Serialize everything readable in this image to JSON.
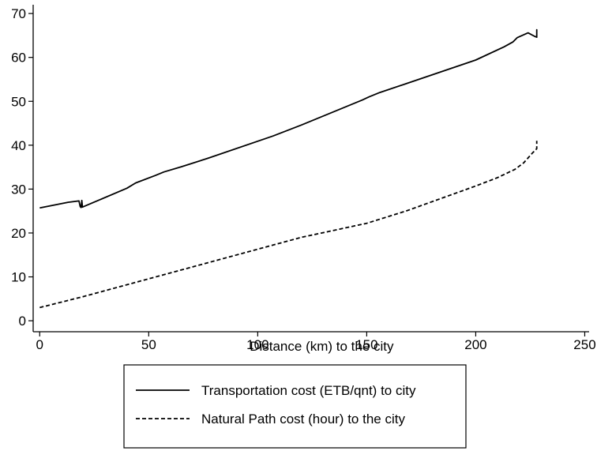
{
  "chart_data": {
    "type": "line",
    "title": "",
    "xlabel": "Distance (km) to the city",
    "ylabel": "",
    "xlim": [
      -3,
      252
    ],
    "ylim": [
      -2.5,
      72
    ],
    "x_ticks": [
      0,
      50,
      100,
      150,
      200,
      250
    ],
    "x_tick_labels": [
      "0",
      "50",
      "100",
      "150",
      "200",
      "250"
    ],
    "y_ticks": [
      0,
      10,
      20,
      30,
      40,
      50,
      60,
      70
    ],
    "y_tick_labels": [
      "0",
      "10",
      "20",
      "30",
      "40",
      "50",
      "60",
      "70"
    ],
    "grid": false,
    "legend_position": "bottom",
    "series": [
      {
        "name": "Transportation cost (ETB/qnt) to city",
        "line_style": "solid",
        "color": "#000000",
        "points": [
          [
            0,
            25.7
          ],
          [
            13,
            27.0
          ],
          [
            18,
            27.3
          ],
          [
            18.6,
            26.0
          ],
          [
            19,
            25.8
          ],
          [
            19.3,
            27.4
          ],
          [
            19.6,
            25.9
          ],
          [
            40,
            30.2
          ],
          [
            44,
            31.4
          ],
          [
            53,
            33.1
          ],
          [
            57,
            33.9
          ],
          [
            65,
            35.1
          ],
          [
            77,
            37.0
          ],
          [
            107,
            42.1
          ],
          [
            120,
            44.6
          ],
          [
            148,
            50.3
          ],
          [
            151,
            51.0
          ],
          [
            156,
            52.0
          ],
          [
            168,
            54.0
          ],
          [
            200,
            59.4
          ],
          [
            213,
            62.4
          ],
          [
            217,
            63.5
          ],
          [
            219,
            64.5
          ],
          [
            224,
            65.6
          ],
          [
            227,
            64.8
          ],
          [
            228,
            64.6
          ],
          [
            228,
            66.3
          ],
          [
            228,
            64.6
          ]
        ]
      },
      {
        "name": "Natural Path cost (hour) to the city",
        "line_style": "dashed",
        "color": "#000000",
        "points": [
          [
            0,
            3.0
          ],
          [
            20,
            5.5
          ],
          [
            40,
            8.2
          ],
          [
            60,
            10.9
          ],
          [
            80,
            13.6
          ],
          [
            100,
            16.3
          ],
          [
            120,
            19.0
          ],
          [
            150,
            22.2
          ],
          [
            168,
            25.0
          ],
          [
            200,
            30.7
          ],
          [
            210,
            32.6
          ],
          [
            218,
            34.5
          ],
          [
            222,
            36.0
          ],
          [
            226,
            38.2
          ],
          [
            228,
            39.2
          ],
          [
            228,
            41.0
          ]
        ]
      }
    ]
  }
}
